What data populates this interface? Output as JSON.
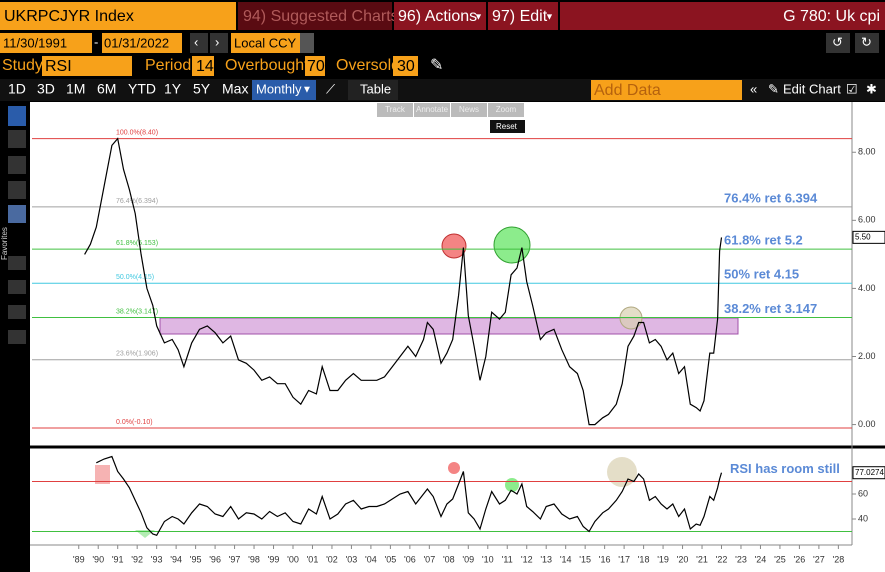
{
  "toolbar": {
    "ticker": "UKRPCJYR Index",
    "suggested": "94) Suggested Charts",
    "actions": "96) Actions",
    "edit": "97) Edit",
    "function": "G 780: Uk cpi",
    "start_date": "11/30/1991",
    "end_date": "01/31/2022",
    "currency": "Local CCY",
    "study": {
      "label": "Study",
      "name": "RSI",
      "period_label": "Period",
      "period": 14,
      "overbought_label": "Overbought",
      "overbought": 70,
      "oversold_label": "Oversold",
      "oversold": 30
    },
    "ranges": [
      "1D",
      "3D",
      "1M",
      "6M",
      "YTD",
      "1Y",
      "5Y",
      "Max"
    ],
    "frequency": "Monthly",
    "table": "Table",
    "add_data": "Add Data",
    "edit_chart": "Edit Chart",
    "tools": [
      "Track",
      "Annotate",
      "News",
      "Zoom"
    ],
    "reset": "Reset",
    "sidebar": "Favorites"
  },
  "chart_data": [
    {
      "type": "line",
      "color": "#000000",
      "x": [
        1989.3,
        1989.6,
        1989.9,
        1990.3,
        1990.7,
        1991.0,
        1991.3,
        1991.6,
        1991.9,
        1992.2,
        1992.5,
        1992.8,
        1993.0,
        1993.4,
        1993.8,
        1994.1,
        1994.4,
        1994.8,
        1995.2,
        1995.6,
        1996.0,
        1996.4,
        1996.8,
        1997.2,
        1997.6,
        1998.0,
        1998.4,
        1998.8,
        1999.2,
        1999.6,
        2000.0,
        2000.4,
        2000.8,
        2001.2,
        2001.5,
        2001.9,
        2002.3,
        2002.7,
        2003.1,
        2003.5,
        2003.9,
        2004.3,
        2004.7,
        2005.1,
        2005.5,
        2005.9,
        2006.3,
        2006.7,
        2006.9,
        2007.2,
        2007.6,
        2007.9,
        2008.2,
        2008.5,
        2008.75,
        2009.0,
        2009.3,
        2009.6,
        2009.9,
        2010.2,
        2010.6,
        2010.9,
        2011.2,
        2011.5,
        2011.75,
        2012.0,
        2012.3,
        2012.7,
        2013.0,
        2013.4,
        2013.8,
        2014.2,
        2014.6,
        2014.9,
        2015.2,
        2015.5,
        2015.9,
        2016.2,
        2016.6,
        2016.9,
        2017.2,
        2017.5,
        2017.75,
        2018.0,
        2018.3,
        2018.6,
        2018.9,
        2019.2,
        2019.5,
        2019.8,
        2020.1,
        2020.4,
        2020.7,
        2020.9,
        2021.1,
        2021.4,
        2021.6,
        2021.8,
        2021.9,
        2022.0
      ],
      "values": [
        5.0,
        5.3,
        5.8,
        7.0,
        8.2,
        8.4,
        7.5,
        6.9,
        6.2,
        5.0,
        4.0,
        3.5,
        2.9,
        2.4,
        2.5,
        2.2,
        1.7,
        2.4,
        2.8,
        2.9,
        2.7,
        2.4,
        2.6,
        1.9,
        1.8,
        1.6,
        1.3,
        1.4,
        1.2,
        1.2,
        0.8,
        0.6,
        1.0,
        0.9,
        1.7,
        1.0,
        1.0,
        1.3,
        1.5,
        1.3,
        1.3,
        1.3,
        1.4,
        1.7,
        2.0,
        2.3,
        2.0,
        2.5,
        3.0,
        2.8,
        1.8,
        2.1,
        2.5,
        3.8,
        5.2,
        3.2,
        2.3,
        1.3,
        2.0,
        3.3,
        3.1,
        3.3,
        4.4,
        4.6,
        5.2,
        4.2,
        3.5,
        2.5,
        2.7,
        2.8,
        2.2,
        1.7,
        1.5,
        1.0,
        0.0,
        0.0,
        0.2,
        0.3,
        0.6,
        1.2,
        2.3,
        2.6,
        3.0,
        3.0,
        2.4,
        2.5,
        2.3,
        1.9,
        2.1,
        1.5,
        1.7,
        0.6,
        0.5,
        0.4,
        0.7,
        2.1,
        2.1,
        3.1,
        5.1,
        5.5
      ],
      "last_value_label": "5.50",
      "xlim": [
        1986.6,
        2028.7
      ],
      "ylim": [
        -0.6,
        9.3
      ],
      "yticks": [
        {
          "value": 0,
          "label": "0.00"
        },
        {
          "value": 2,
          "label": "2.00"
        },
        {
          "value": 4,
          "label": "4.00"
        },
        {
          "value": 6,
          "label": "6.00"
        },
        {
          "value": 8,
          "label": "8.00"
        }
      ],
      "levels": [
        {
          "value": 8.4,
          "label": "100.0%(8.40)",
          "color": "#e04040"
        },
        {
          "value": 6.394,
          "label": "76.4%(6.394)",
          "color": "#a0a0a0",
          "note": "76.4% ret 6.394"
        },
        {
          "value": 5.153,
          "label": "61.8%(5.153)",
          "color": "#40c040",
          "note": "61.8% ret 5.2"
        },
        {
          "value": 4.15,
          "label": "50.0%(4.15)",
          "color": "#40c8e0",
          "note": "50% ret 4.15"
        },
        {
          "value": 3.147,
          "label": "38.2%(3.147)",
          "color": "#40c040",
          "note": "38.2% ret 3.147"
        },
        {
          "value": 1.906,
          "label": "23.6%(1.906)",
          "color": "#a0a0a0"
        },
        {
          "value": -0.1,
          "label": "0.0%(-0.10)",
          "color": "#e04040"
        }
      ]
    },
    {
      "type": "line",
      "color": "#000000",
      "x": [
        1989.3,
        1989.6,
        1989.9,
        1990.3,
        1990.7,
        1991.0,
        1991.3,
        1991.6,
        1991.9,
        1992.2,
        1992.5,
        1992.8,
        1993.0,
        1993.4,
        1993.8,
        1994.1,
        1994.4,
        1994.8,
        1995.2,
        1995.6,
        1996.0,
        1996.4,
        1996.8,
        1997.2,
        1997.6,
        1998.0,
        1998.4,
        1998.8,
        1999.2,
        1999.6,
        2000.0,
        2000.4,
        2000.8,
        2001.2,
        2001.5,
        2001.9,
        2002.3,
        2002.7,
        2003.1,
        2003.5,
        2003.9,
        2004.3,
        2004.7,
        2005.1,
        2005.5,
        2005.9,
        2006.3,
        2006.7,
        2006.9,
        2007.2,
        2007.6,
        2007.9,
        2008.2,
        2008.5,
        2008.75,
        2009.0,
        2009.3,
        2009.6,
        2009.9,
        2010.2,
        2010.6,
        2010.9,
        2011.2,
        2011.5,
        2011.75,
        2012.0,
        2012.3,
        2012.7,
        2013.0,
        2013.4,
        2013.8,
        2014.2,
        2014.6,
        2014.9,
        2015.2,
        2015.5,
        2015.9,
        2016.2,
        2016.6,
        2016.9,
        2017.2,
        2017.5,
        2017.75,
        2018.0,
        2018.3,
        2018.6,
        2018.9,
        2019.2,
        2019.5,
        2019.8,
        2020.1,
        2020.4,
        2020.7,
        2020.9,
        2021.1,
        2021.4,
        2021.6,
        2021.8,
        2021.9,
        2022.0
      ],
      "values": [
        null,
        null,
        85,
        88,
        90,
        78,
        72,
        65,
        55,
        45,
        33,
        28,
        27,
        38,
        42,
        40,
        36,
        45,
        52,
        50,
        44,
        42,
        50,
        40,
        45,
        44,
        40,
        46,
        42,
        45,
        38,
        36,
        48,
        44,
        58,
        40,
        44,
        52,
        55,
        48,
        50,
        50,
        52,
        56,
        60,
        62,
        52,
        60,
        64,
        58,
        42,
        52,
        56,
        68,
        78,
        45,
        40,
        32,
        48,
        62,
        52,
        55,
        63,
        60,
        68,
        50,
        46,
        40,
        50,
        52,
        44,
        40,
        42,
        34,
        30,
        38,
        45,
        48,
        55,
        62,
        72,
        70,
        76,
        72,
        55,
        58,
        52,
        48,
        52,
        42,
        48,
        32,
        36,
        35,
        42,
        58,
        55,
        65,
        72,
        77.0274
      ],
      "annotation": "RSI has room still",
      "xlim": [
        1986.6,
        2028.7
      ],
      "ylim": [
        21.6,
        93.6
      ],
      "yticks": [
        40,
        60
      ],
      "xticks": [
        {
          "value": 1989,
          "label": "'89"
        },
        {
          "value": 1990,
          "label": "'90"
        },
        {
          "value": 1991,
          "label": "'91"
        },
        {
          "value": 1992,
          "label": "'92"
        },
        {
          "value": 1993,
          "label": "'93"
        },
        {
          "value": 1994,
          "label": "'94"
        },
        {
          "value": 1995,
          "label": "'95"
        },
        {
          "value": 1996,
          "label": "'96"
        },
        {
          "value": 1997,
          "label": "'97"
        },
        {
          "value": 1998,
          "label": "'98"
        },
        {
          "value": 1999,
          "label": "'99"
        },
        {
          "value": 2000,
          "label": "'00"
        },
        {
          "value": 2001,
          "label": "'01"
        },
        {
          "value": 2002,
          "label": "'02"
        },
        {
          "value": 2003,
          "label": "'03"
        },
        {
          "value": 2004,
          "label": "'04"
        },
        {
          "value": 2005,
          "label": "'05"
        },
        {
          "value": 2006,
          "label": "'06"
        },
        {
          "value": 2007,
          "label": "'07"
        },
        {
          "value": 2008,
          "label": "'08"
        },
        {
          "value": 2009,
          "label": "'09"
        },
        {
          "value": 2010,
          "label": "'10"
        },
        {
          "value": 2011,
          "label": "'11"
        },
        {
          "value": 2012,
          "label": "'12"
        },
        {
          "value": 2013,
          "label": "'13"
        },
        {
          "value": 2014,
          "label": "'14"
        },
        {
          "value": 2015,
          "label": "'15"
        },
        {
          "value": 2016,
          "label": "'16"
        },
        {
          "value": 2017,
          "label": "'17"
        },
        {
          "value": 2018,
          "label": "'18"
        },
        {
          "value": 2019,
          "label": "'19"
        },
        {
          "value": 2020,
          "label": "'20"
        },
        {
          "value": 2021,
          "label": "'21"
        },
        {
          "value": 2022,
          "label": "'22"
        },
        {
          "value": 2023,
          "label": "'23"
        },
        {
          "value": 2024,
          "label": "'24"
        },
        {
          "value": 2025,
          "label": "'25"
        },
        {
          "value": 2026,
          "label": "'26"
        },
        {
          "value": 2027,
          "label": "'27"
        },
        {
          "value": 2028,
          "label": "'28"
        }
      ]
    }
  ]
}
